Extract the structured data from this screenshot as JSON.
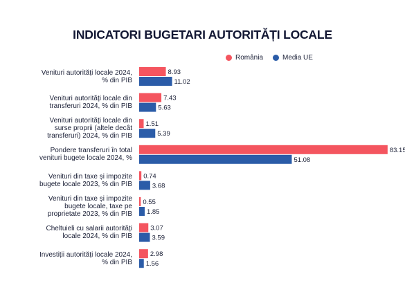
{
  "chart_data": {
    "type": "bar",
    "orientation": "horizontal",
    "title": "INDICATORI BUGETARI AUTORITĂȚI LOCALE",
    "legend_position": "top-right",
    "categories": [
      "Venituri autorități locale 2024,\n% din PIB",
      "Venituri autorități locale din\ntransferuri 2024, % din PIB",
      "Venituri autorități locale din\nsurse proprii (altele decât\ntransferuri) 2024, % din PIB",
      "Pondere transferuri în total\nvenituri bugete locale 2024, %",
      "Venituri din taxe și impozite\nbugete locale 2023, % din PIB",
      "Venituri din taxe și impozite\nbugete locale, taxe pe\nproprietate 2023, % din PIB",
      "Cheltuieli cu salarii autorități\nlocale 2024, % din PIB",
      "Investiții autorități locale 2024,\n% din PIB"
    ],
    "series": [
      {
        "name": "România",
        "color": "#f4555f",
        "values": [
          8.93,
          7.43,
          1.51,
          83.15,
          0.74,
          0.55,
          3.07,
          2.98
        ],
        "labels": [
          "8.93",
          "7.43",
          "1.51",
          "83.15",
          "0.74",
          "0.55",
          "3.07",
          "2.98"
        ]
      },
      {
        "name": "Media UE",
        "color": "#2b5ca8",
        "values": [
          11.02,
          5.63,
          5.39,
          51.08,
          3.68,
          1.85,
          3.59,
          1.56
        ],
        "labels": [
          "11.02",
          "5.63",
          "5.39",
          "51.08",
          "3.68",
          "1.85",
          "3.59",
          "1.56"
        ]
      }
    ],
    "xlim": [
      0,
      85
    ],
    "grid": false
  }
}
